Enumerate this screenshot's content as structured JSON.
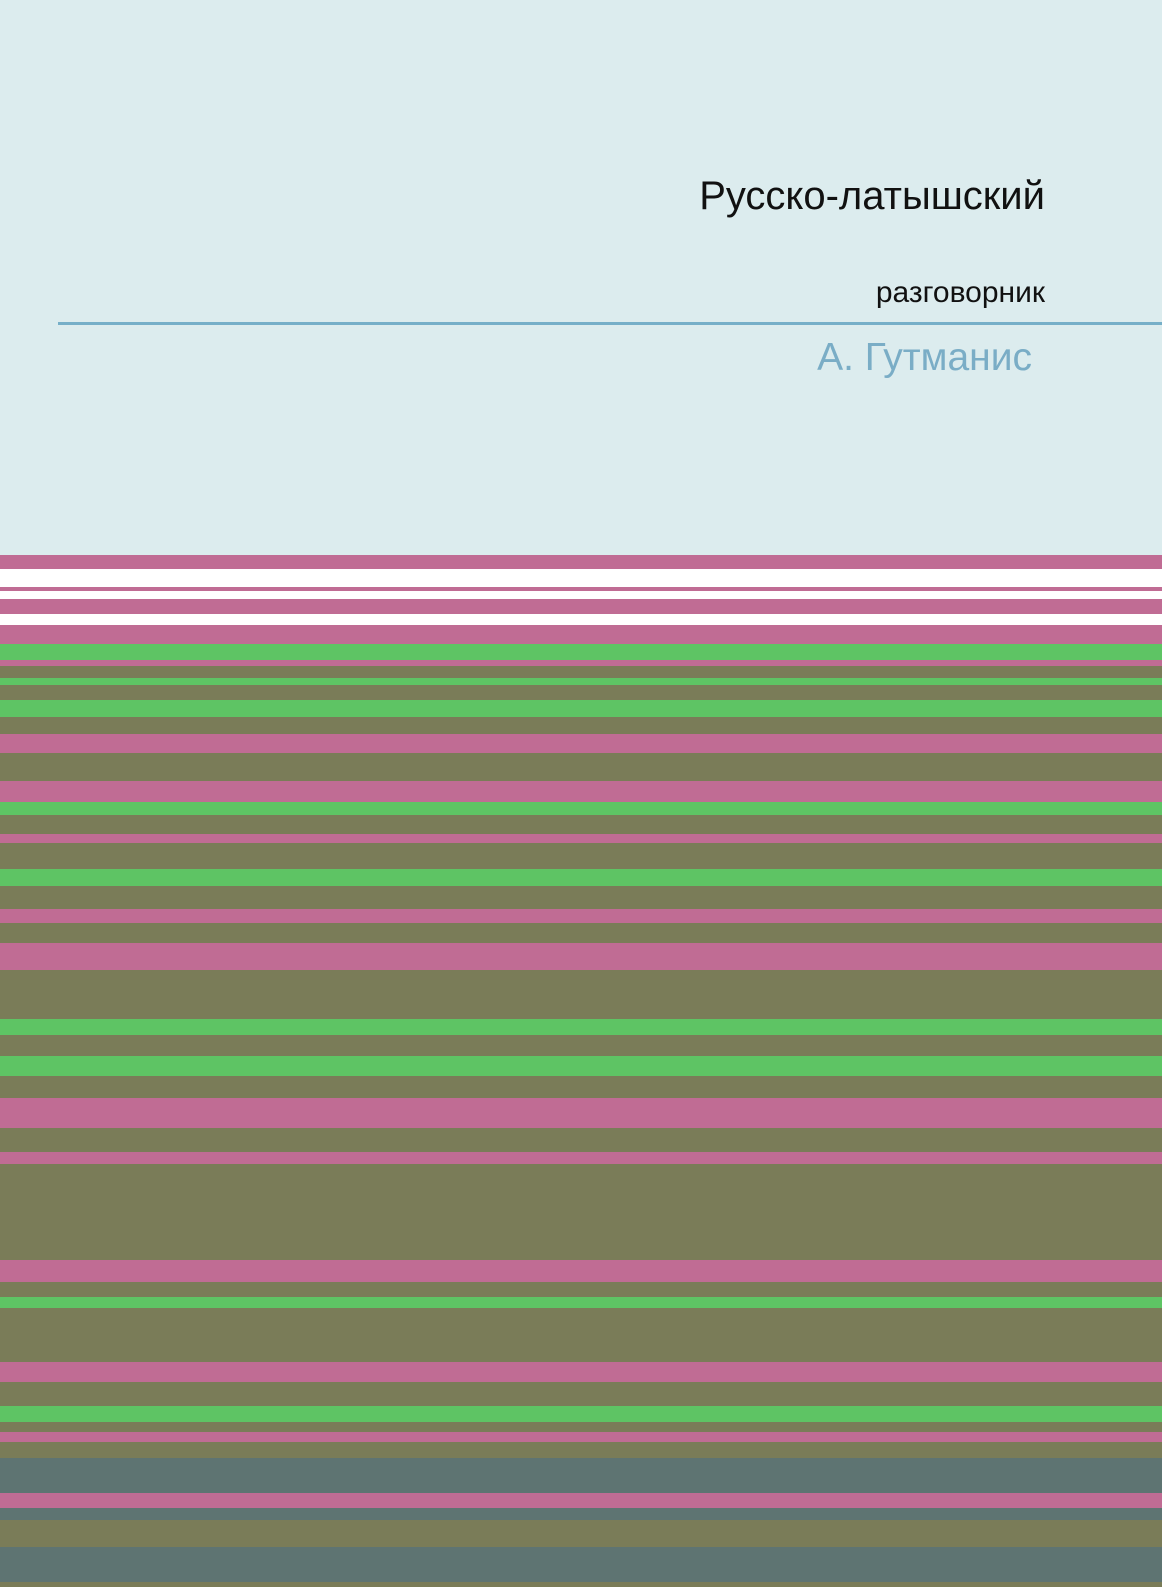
{
  "cover": {
    "title": "Русско-латышский",
    "subtitle": "разговорник",
    "author": "А. Гутманис"
  },
  "colors": {
    "background": "#dcecee",
    "rule": "#76afc8",
    "author": "#7aadc6",
    "pink": "#c06c94",
    "green": "#5ec464",
    "olive": "#7a7c58",
    "slate": "#5e7472",
    "white": "#ffffff"
  },
  "stripe_pattern": [
    "pink",
    "white",
    "pink",
    "white",
    "pink",
    "white",
    "pink",
    "green",
    "pink",
    "olive",
    "green",
    "olive",
    "green",
    "olive",
    "pink",
    "olive",
    "pink",
    "green",
    "olive",
    "pink",
    "olive",
    "green",
    "olive",
    "pink",
    "olive",
    "pink",
    "olive",
    "green",
    "olive",
    "green",
    "olive",
    "pink",
    "olive",
    "pink",
    "olive",
    "pink",
    "olive",
    "green",
    "olive",
    "pink",
    "olive",
    "green",
    "olive",
    "pink",
    "olive",
    "slate",
    "pink",
    "slate",
    "olive",
    "slate",
    "olive"
  ]
}
